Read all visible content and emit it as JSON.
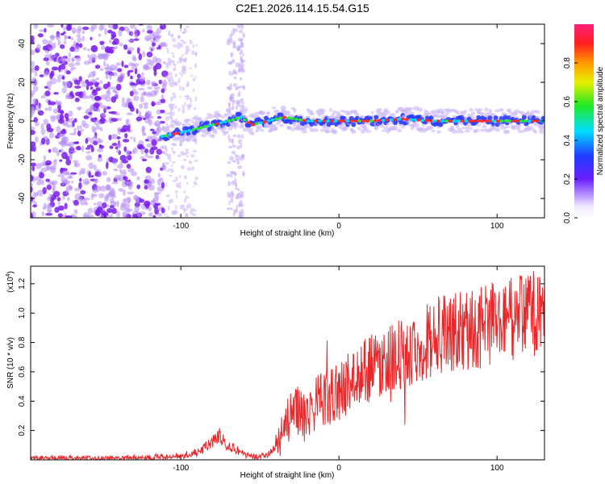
{
  "title": "C2E1.2026.114.15.54.G15",
  "chart_data": [
    {
      "type": "heatmap",
      "xlabel": "Height of straight line (km)",
      "ylabel": "Frequency (Hz)",
      "xlim": [
        -195,
        130
      ],
      "ylim": [
        -50,
        50
      ],
      "xticks": [
        -100,
        0,
        100
      ],
      "yticks": [
        -40,
        -20,
        0,
        20,
        40
      ],
      "colorbar": {
        "label": "Normalized spectral amplitude",
        "range": [
          0,
          1
        ],
        "ticks": [
          "0.0",
          "0.2",
          "0.4",
          "0.6",
          "0.8"
        ]
      },
      "ridge": {
        "x": [
          -112,
          -100,
          -90,
          -80,
          -70,
          -62,
          -55,
          -45,
          -35,
          -20,
          -10,
          0,
          20,
          40,
          60,
          80,
          100,
          130
        ],
        "y": [
          -8,
          -6,
          -4,
          -2,
          0,
          2,
          -2,
          0,
          2,
          0,
          0,
          0,
          0,
          1,
          0,
          0,
          0,
          0
        ]
      }
    },
    {
      "type": "line",
      "xlabel": "Height of straight line (km)",
      "ylabel": "SNR (10 * v/v)",
      "yscale_label": "(x10",
      "yscale_exp": "4",
      "yscale_close": ")",
      "xlim": [
        -195,
        130
      ],
      "ylim": [
        0,
        1.32
      ],
      "xticks": [
        -100,
        0,
        100
      ],
      "yticks": [
        "0.2",
        "0.4",
        "0.6",
        "0.8",
        "1.0",
        "1.2"
      ],
      "color": "#e8282b",
      "series": [
        {
          "x": [
            -195,
            -180,
            -160,
            -140,
            -120,
            -110,
            -100,
            -90,
            -85,
            -80,
            -77,
            -75,
            -72,
            -70,
            -65,
            -60,
            -55,
            -50,
            -45,
            -40,
            -35,
            -30,
            -25,
            -20,
            -15,
            -10,
            -5,
            0,
            10,
            20,
            30,
            40,
            50,
            60,
            70,
            80,
            90,
            100,
            110,
            120,
            130
          ],
          "values": [
            0.01,
            0.01,
            0.01,
            0.01,
            0.02,
            0.02,
            0.03,
            0.05,
            0.08,
            0.12,
            0.15,
            0.17,
            0.12,
            0.1,
            0.07,
            0.04,
            0.02,
            0.02,
            0.03,
            0.09,
            0.22,
            0.3,
            0.34,
            0.32,
            0.38,
            0.42,
            0.44,
            0.47,
            0.55,
            0.63,
            0.68,
            0.72,
            0.78,
            0.84,
            0.86,
            0.88,
            0.9,
            0.94,
            0.96,
            1.0,
            0.98
          ]
        }
      ]
    }
  ]
}
